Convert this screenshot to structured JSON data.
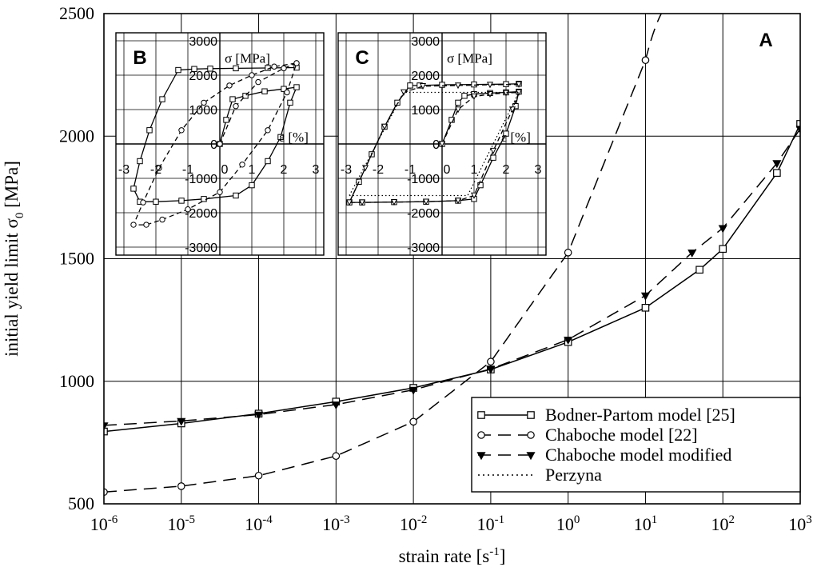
{
  "chart_data": [
    {
      "panel": "A",
      "type": "line",
      "xlabel": "strain rate [s",
      "xlabel_sup": "-1",
      "xlabel_end": "]",
      "ylabel": "initial yield limit σ",
      "ylabel_sub": "0",
      "ylabel_end": " [MPa]",
      "x_scale": "log",
      "xlim": [
        1e-06,
        1000.0
      ],
      "ylim": [
        500,
        2500
      ],
      "x_ticks": [
        {
          "base": "10",
          "exp": "-6",
          "value": 1e-06
        },
        {
          "base": "10",
          "exp": "-5",
          "value": 1e-05
        },
        {
          "base": "10",
          "exp": "-4",
          "value": 0.0001
        },
        {
          "base": "10",
          "exp": "-3",
          "value": 0.001
        },
        {
          "base": "10",
          "exp": "-2",
          "value": 0.01
        },
        {
          "base": "10",
          "exp": "-1",
          "value": 0.1
        },
        {
          "base": "10",
          "exp": "0",
          "value": 1
        },
        {
          "base": "10",
          "exp": "1",
          "value": 10
        },
        {
          "base": "10",
          "exp": "2",
          "value": 100
        },
        {
          "base": "10",
          "exp": "3",
          "value": 1000
        }
      ],
      "y_ticks": [
        "500",
        "1000",
        "1500",
        "2000",
        "2500"
      ],
      "grid": true,
      "legend_position": "bottom-right",
      "series": [
        {
          "name": "Bodner-Partom model [25]",
          "line_style": "solid",
          "marker": "square",
          "x": [
            1e-06,
            1e-05,
            0.0001,
            0.001,
            0.01,
            0.1,
            1,
            10,
            100,
            50,
            500,
            1000
          ],
          "y": [
            795,
            828,
            868,
            917,
            973,
            1048,
            1160,
            1300,
            1540,
            1455,
            1850,
            2050
          ]
        },
        {
          "name": "Chaboche model [22]",
          "line_style": "dashed",
          "marker": "circle",
          "x": [
            1e-06,
            1e-05,
            0.0001,
            0.001,
            0.01,
            0.1,
            1,
            10
          ],
          "y": [
            548,
            572,
            615,
            695,
            835,
            1080,
            1525,
            2310
          ]
        },
        {
          "name": "Chaboche model modified",
          "line_style": "dashed",
          "marker": "triangle-down",
          "x": [
            1e-06,
            1e-05,
            0.0001,
            0.001,
            0.01,
            0.1,
            1,
            10,
            40,
            100,
            500,
            1000
          ],
          "y": [
            820,
            838,
            864,
            905,
            965,
            1050,
            1170,
            1350,
            1525,
            1625,
            1890,
            2030
          ]
        },
        {
          "name": "Perzyna",
          "line_style": "dotted",
          "marker": "none",
          "x": [],
          "y": []
        }
      ],
      "annotations": [
        "A"
      ]
    },
    {
      "panel": "B",
      "type": "line",
      "xlabel": "ε [%]",
      "ylabel": "σ [MPa]",
      "xlim": [
        -3,
        3
      ],
      "ylim": [
        -3000,
        3000
      ],
      "x_ticks": [
        "-3",
        "-2",
        "-1",
        "0",
        "1",
        "2",
        "3"
      ],
      "y_ticks": [
        "3000",
        "2000",
        "1000",
        "0",
        "-1000",
        "-2000",
        "-3000"
      ],
      "grid": true,
      "series": [
        {
          "ref": "Bodner-Partom model [25]",
          "x": [
            0,
            0.2,
            0.4,
            0.8,
            1.4,
            2.0,
            2.4,
            2.2,
            1.9,
            1.5,
            1.0,
            0.5,
            -0.5,
            -1.2,
            -2.0,
            -2.5,
            -2.7,
            -2.5,
            -2.2,
            -1.8,
            -1.3,
            -0.8,
            -0.3,
            0.5,
            1.5,
            2.4
          ],
          "y": [
            0,
            700,
            1300,
            1400,
            1530,
            1600,
            1650,
            1200,
            200,
            -500,
            -1200,
            -1500,
            -1600,
            -1650,
            -1680,
            -1680,
            -1300,
            -500,
            400,
            1300,
            2150,
            2180,
            2190,
            2200,
            2210,
            2220
          ]
        },
        {
          "ref": "Chaboche model [22]",
          "x": [
            0,
            0.5,
            1.2,
            2.0,
            2.4,
            2.1,
            1.5,
            0.7,
            0,
            -1.0,
            -1.8,
            -2.3,
            -2.7,
            -2.4,
            -1.9,
            -1.2,
            -0.5,
            0.3,
            1.0,
            1.7,
            2.4
          ],
          "y": [
            0,
            1100,
            1800,
            2200,
            2350,
            1500,
            400,
            -600,
            -1400,
            -1900,
            -2200,
            -2350,
            -2350,
            -1700,
            -700,
            400,
            1200,
            1700,
            2000,
            2250,
            2350
          ]
        }
      ],
      "annotations": [
        "B"
      ]
    },
    {
      "panel": "C",
      "type": "line",
      "xlabel": "ε [%]",
      "ylabel": "σ [MPa]",
      "xlim": [
        -3,
        3
      ],
      "ylim": [
        -3000,
        3000
      ],
      "x_ticks": [
        "-3",
        "-2",
        "-1",
        "0",
        "1",
        "2",
        "3"
      ],
      "y_ticks": [
        "3000",
        "2000",
        "1000",
        "0",
        "-1000",
        "-2000",
        "-3000"
      ],
      "grid": true,
      "series": [
        {
          "ref": "Bodner-Partom model [25]",
          "x": [
            0,
            0.3,
            0.5,
            0.7,
            1.0,
            1.5,
            2.0,
            2.4,
            2.3,
            2.0,
            1.6,
            1.2,
            1.0,
            0.5,
            -0.5,
            -1.5,
            -2.5,
            -2.9,
            -2.6,
            -2.2,
            -1.8,
            -1.4,
            -1.0,
            -0.7,
            0,
            1.0,
            2.0,
            2.4
          ],
          "y": [
            0,
            700,
            1200,
            1400,
            1450,
            1480,
            1500,
            1520,
            1100,
            300,
            -400,
            -1200,
            -1600,
            -1650,
            -1680,
            -1690,
            -1700,
            -1700,
            -1100,
            -300,
            500,
            1200,
            1700,
            1700,
            1720,
            1730,
            1740,
            1750
          ]
        },
        {
          "ref": "Chaboche model modified",
          "x": [
            0,
            0.5,
            1.0,
            1.5,
            2.0,
            2.4,
            2.2,
            1.6,
            1.0,
            0.5,
            -0.5,
            -1.5,
            -2.5,
            -2.9,
            -2.4,
            -1.8,
            -1.2,
            -0.6,
            0.5,
            1.5,
            2.4
          ],
          "y": [
            0,
            1000,
            1380,
            1450,
            1480,
            1500,
            1000,
            -200,
            -1500,
            -1650,
            -1680,
            -1690,
            -1700,
            -1700,
            -700,
            500,
            1500,
            1680,
            1700,
            1720,
            1730
          ]
        },
        {
          "ref": "Perzyna",
          "x": [
            -2.9,
            0.8,
            2.4,
            0,
            -1.2,
            -2.9
          ],
          "y": [
            -1500,
            -1500,
            1500,
            1500,
            1500,
            -1500
          ]
        }
      ],
      "annotations": [
        "C"
      ]
    }
  ]
}
